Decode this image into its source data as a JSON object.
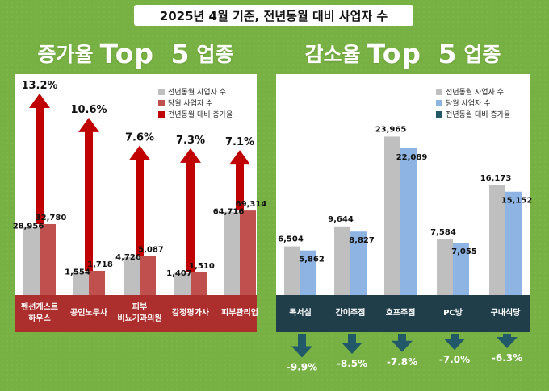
{
  "header": {
    "title": "2025년 4월 기준, 전년동월 대비 사업자 수"
  },
  "panels": {
    "increase_title_prefix": "증가율",
    "increase_title_main": "Top 5",
    "increase_title_suffix": "업종",
    "decrease_title_prefix": "감소율",
    "decrease_title_main": "Top 5",
    "decrease_title_suffix": "업종"
  },
  "colors": {
    "prev_bar": "#bfbfbf",
    "increase_cur_bar": "#c0504d",
    "increase_arrow": "#c00000",
    "increase_band": "#ac2f2d",
    "increase_top_label": "#c00000",
    "decrease_cur_bar": "#8eb4e3",
    "decrease_arrow": "#215968",
    "decrease_band": "#203d4a",
    "background": "#78b143"
  },
  "chart_data": [
    {
      "type": "bar",
      "title": "증가율 Top 5 업종",
      "categories": [
        "펜션게스트\n하우스",
        "공인노무사",
        "피부\n비뇨기과의원",
        "감정평가사",
        "피부관리업"
      ],
      "series": [
        {
          "name": "전년동월 사업자 수",
          "values": [
            28956,
            1554,
            4726,
            1407,
            64716
          ]
        },
        {
          "name": "당월 사업자 수",
          "values": [
            32780,
            1718,
            5087,
            1510,
            69314
          ]
        },
        {
          "name": "전년동월 대비 증가율",
          "values": [
            13.2,
            10.6,
            7.6,
            7.3,
            7.1
          ],
          "labels": [
            "13.2%",
            "10.6%",
            "7.6%",
            "7.3%",
            "7.1%"
          ]
        }
      ],
      "value_labels": {
        "prev": [
          "28,956",
          "1,554",
          "4,726",
          "1,407",
          "64,716"
        ],
        "cur": [
          "32,780",
          "1,718",
          "5,087",
          "1,510",
          "69,314"
        ]
      },
      "legend": "top-right"
    },
    {
      "type": "bar",
      "title": "감소율 Top 5 업종",
      "categories": [
        "독서실",
        "간이주점",
        "호프주점",
        "PC방",
        "구내식당"
      ],
      "series": [
        {
          "name": "전년동월 사업자 수",
          "values": [
            6504,
            9644,
            23965,
            7584,
            16173
          ]
        },
        {
          "name": "당월 사업자 수",
          "values": [
            5862,
            8827,
            22089,
            7055,
            15152
          ]
        },
        {
          "name": "전년동월 대비 증가율",
          "values": [
            -9.9,
            -8.5,
            -7.8,
            -7.0,
            -6.3
          ],
          "labels": [
            "-9.9%",
            "-8.5%",
            "-7.8%",
            "-7.0%",
            "-6.3%"
          ]
        }
      ],
      "value_labels": {
        "prev": [
          "6,504",
          "9,644",
          "23,965",
          "7,584",
          "16,173"
        ],
        "cur": [
          "5,862",
          "8,827",
          "22,089",
          "7,055",
          "15,152"
        ]
      },
      "legend": "top-right"
    }
  ]
}
